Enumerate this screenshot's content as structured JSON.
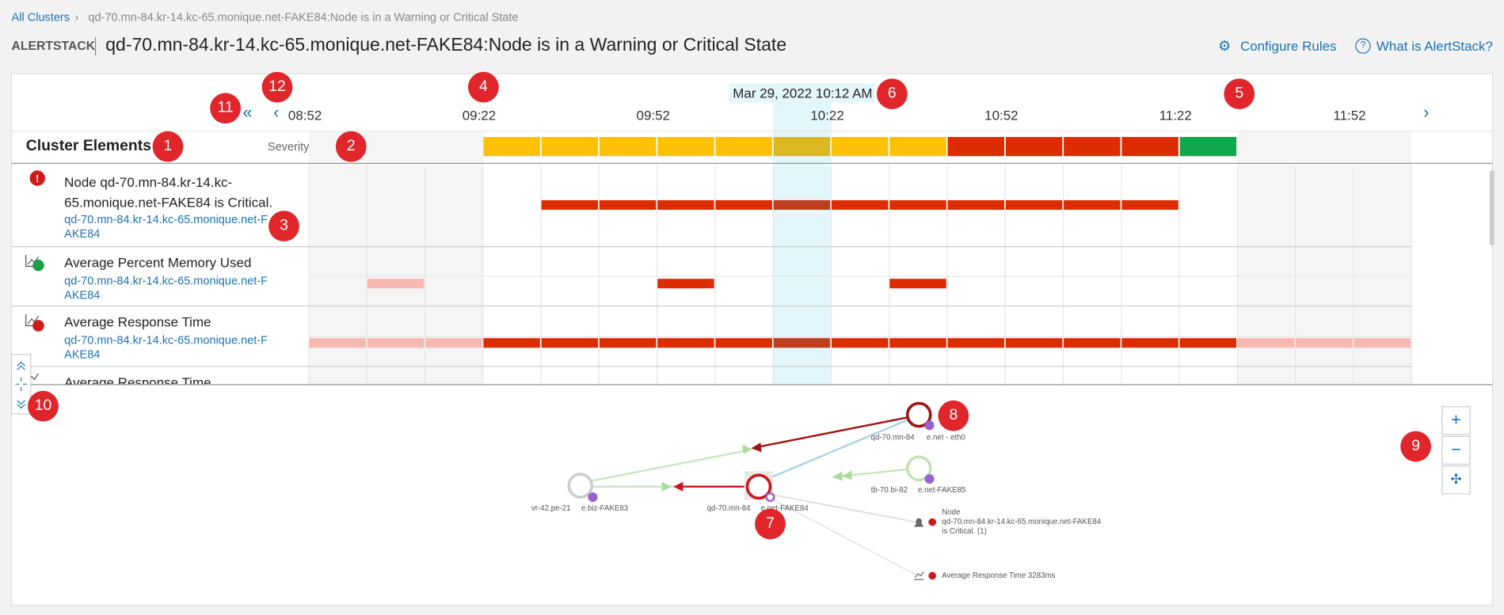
{
  "breadcrumb": {
    "root": "All Clusters",
    "current": "qd-70.mn-84.kr-14.kc-65.monique.net-FAKE84:Node is in a Warning or Critical State"
  },
  "header": {
    "app": "ALERTSTACK",
    "title": "qd-70.mn-84.kr-14.kc-65.monique.net-FAKE84:Node is in a Warning or Critical State",
    "actions": [
      "Configure Rules",
      "What is AlertStack?"
    ]
  },
  "timeline": {
    "selected": "Mar 29, 2022 10:12 AM",
    "ticks": [
      "08:52",
      "09:22",
      "09:52",
      "10:22",
      "10:52",
      "11:22",
      "11:52"
    ],
    "column_header": "Cluster Elements",
    "severity_label": "Severity"
  },
  "rows": [
    {
      "title": "Node qd-70.mn-84.kr-14.kc-65.monique.net-FAKE84 is Critical.",
      "source": "qd-70.mn-84.kr-14.kc-65.monique.net-FAKE84"
    },
    {
      "title": "Average Percent Memory Used",
      "source": "qd-70.mn-84.kr-14.kc-65.monique.net-FAKE84"
    },
    {
      "title": "Average Response Time",
      "source": "qd-70.mn-84.kr-14.kc-65.monique.net-FAKE84"
    },
    {
      "title": "Average Response Time"
    }
  ],
  "graph": {
    "nodes": [
      {
        "name": "qd-70.mn-84",
        "suffix": "e.net - eth0"
      },
      {
        "name": "vr-42.pe-21",
        "suffix": "e.biz-FAKE83"
      },
      {
        "name": "qd-70.mn-84",
        "suffix": "e.net-FAKE84"
      },
      {
        "name": "tb-70.bi-82",
        "suffix": "e.net-FAKE85"
      }
    ],
    "alerts": [
      {
        "kind": "Node",
        "source": "qd-70.mn-84.kr-14.kc-65.monique.net-FAKE84",
        "state": "is Critical.  (1)"
      },
      {
        "text": "Average Response Time 3283ms"
      }
    ]
  },
  "callouts": [
    1,
    2,
    3,
    4,
    5,
    6,
    7,
    8,
    9,
    10,
    11,
    12
  ]
}
